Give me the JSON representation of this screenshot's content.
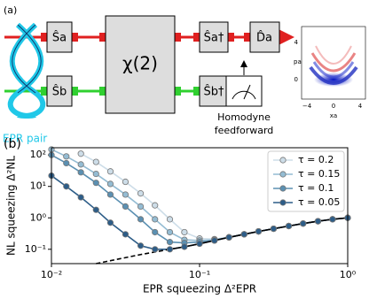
{
  "diagram": {
    "label": "(a)",
    "epr_label": "EPR pair",
    "boxes": {
      "sa": "Ŝa",
      "sb": "Ŝb",
      "chi": "χ(2)",
      "sa_dag": "Ŝa†",
      "sb_dag": "Ŝb†",
      "da": "D̂a"
    },
    "homodyne": [
      "Homodyne",
      "feedforward"
    ],
    "inset": {
      "xlabel": "xa",
      "ylabel": "pa",
      "xticks": [
        "−4",
        "0",
        "4"
      ],
      "yticks": [
        "0",
        "4"
      ]
    }
  },
  "chart_data": {
    "type": "line",
    "label": "(b)",
    "xlabel": "EPR squeezing Δ²EPR",
    "ylabel": "NL squeezing Δ²NL",
    "xscale": "log",
    "yscale": "log",
    "xlim": [
      0.01,
      1
    ],
    "ylim": [
      0.035,
      170
    ],
    "xticks": [
      {
        "value": 0.01,
        "label": "10⁻²"
      },
      {
        "value": 0.1,
        "label": "10⁻¹"
      },
      {
        "value": 1,
        "label": "10⁰"
      }
    ],
    "yticks": [
      {
        "value": 0.1,
        "label": "10⁻¹"
      },
      {
        "value": 1,
        "label": "10⁰"
      },
      {
        "value": 10,
        "label": "10¹"
      },
      {
        "value": 100,
        "label": "10²"
      }
    ],
    "x": [
      0.01,
      0.0126,
      0.0158,
      0.02,
      0.025,
      0.0316,
      0.04,
      0.05,
      0.063,
      0.079,
      0.1,
      0.126,
      0.158,
      0.2,
      0.25,
      0.316,
      0.4,
      0.5,
      0.63,
      0.79,
      1.0
    ],
    "series": [
      {
        "name": "τ = 0.2",
        "color": "#cddde8",
        "values": [
          null,
          null,
          110,
          60,
          30,
          14,
          6,
          2.5,
          0.9,
          0.35,
          0.22,
          0.21,
          0.24,
          0.3,
          0.37,
          0.45,
          0.55,
          0.66,
          0.78,
          0.9,
          1.0
        ]
      },
      {
        "name": "τ = 0.15",
        "color": "#94bcd3",
        "values": [
          150,
          90,
          50,
          25,
          12,
          5.5,
          2.3,
          0.9,
          0.35,
          0.2,
          0.19,
          0.2,
          0.24,
          0.3,
          0.37,
          0.45,
          0.55,
          0.66,
          0.78,
          0.9,
          1.0
        ]
      },
      {
        "name": "τ = 0.1",
        "color": "#5b90b2",
        "values": [
          100,
          55,
          28,
          13,
          5.5,
          2.3,
          0.9,
          0.35,
          0.17,
          0.16,
          0.17,
          0.19,
          0.24,
          0.3,
          0.37,
          0.45,
          0.55,
          0.66,
          0.78,
          0.9,
          1.0
        ]
      },
      {
        "name": "τ = 0.05",
        "color": "#2d5d88",
        "values": [
          22,
          10,
          4.5,
          1.8,
          0.7,
          0.3,
          0.13,
          0.1,
          0.1,
          0.12,
          0.15,
          0.19,
          0.24,
          0.3,
          0.37,
          0.45,
          0.55,
          0.66,
          0.78,
          0.9,
          1.0
        ]
      }
    ],
    "curves": [
      {
        "color": "#000000",
        "dashed": false,
        "x": [
          0.063,
          0.079,
          0.1,
          0.126,
          0.158,
          0.2,
          0.25,
          0.316,
          0.4,
          0.5,
          0.63,
          0.79,
          1.0
        ],
        "values": [
          0.1,
          0.12,
          0.15,
          0.19,
          0.24,
          0.3,
          0.37,
          0.45,
          0.55,
          0.66,
          0.78,
          0.9,
          1.0
        ]
      },
      {
        "color": "#000000",
        "dashed": true,
        "x": [
          0.02,
          0.04,
          0.063
        ],
        "values": [
          0.035,
          0.068,
          0.1
        ]
      }
    ],
    "legend": "upper right"
  }
}
